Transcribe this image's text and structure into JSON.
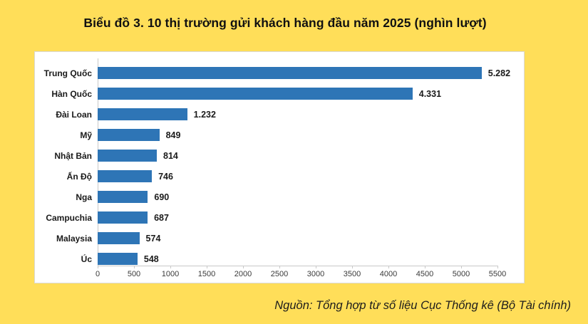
{
  "title": "Biểu đồ 3. 10 thị trường gửi khách hàng đầu năm 2025 (nghìn lượt)",
  "source": "Nguồn: Tổng hợp từ số liệu Cục Thống kê (Bộ Tài chính)",
  "colors": {
    "background": "#FFDE59",
    "bar": "#2E75B6",
    "card_bg": "#FFFFFF",
    "card_border": "#D9D9D9",
    "axis": "#C9C9C9",
    "title_text": "#111111",
    "label_text": "#1A1A1A",
    "tick_text": "#3A3A3A"
  },
  "chart_data": {
    "type": "bar",
    "orientation": "horizontal",
    "title": "Biểu đồ 3. 10 thị trường gửi khách hàng đầu năm 2025 (nghìn lượt)",
    "unit": "nghìn lượt",
    "categories": [
      "Trung Quốc",
      "Hàn Quốc",
      "Đài Loan",
      "Mỹ",
      "Nhật Bản",
      "Ấn Độ",
      "Nga",
      "Campuchia",
      "Malaysia",
      "Úc"
    ],
    "values": [
      5282,
      4331,
      1232,
      849,
      814,
      746,
      690,
      687,
      574,
      548
    ],
    "value_labels": [
      "5.282",
      "4.331",
      "1.232",
      "849",
      "814",
      "746",
      "690",
      "687",
      "574",
      "548"
    ],
    "xlim": [
      0,
      5500
    ],
    "xticks": [
      0,
      500,
      1000,
      1500,
      2000,
      2500,
      3000,
      3500,
      4000,
      4500,
      5000,
      5500
    ],
    "grid": false,
    "legend": false
  }
}
